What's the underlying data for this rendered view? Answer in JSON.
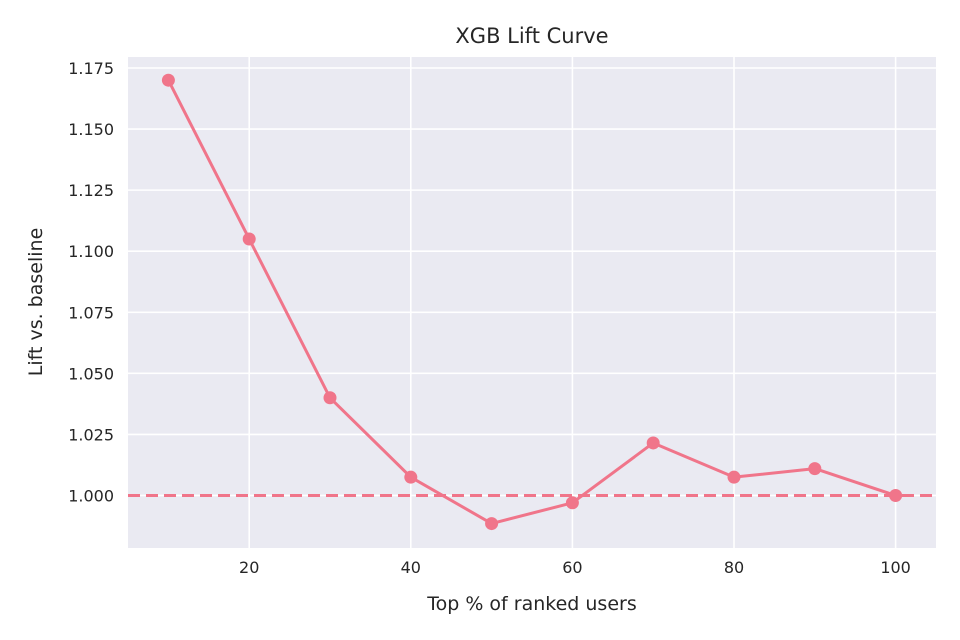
{
  "chart_data": {
    "type": "line",
    "title": "XGB Lift Curve",
    "xlabel": "Top % of ranked users",
    "ylabel": "Lift vs. baseline",
    "x": [
      10,
      20,
      30,
      40,
      50,
      60,
      70,
      80,
      90,
      100
    ],
    "series": [
      {
        "values": [
          1.17,
          1.105,
          1.04,
          1.0075,
          0.9885,
          0.997,
          1.0215,
          1.0075,
          1.011,
          1.0
        ]
      }
    ],
    "reference_line": {
      "y": 1.0,
      "style": "dashed"
    },
    "xlim": [
      5,
      105
    ],
    "ylim": [
      0.9785,
      1.1795
    ],
    "xticks": [
      20,
      40,
      60,
      80,
      100
    ],
    "yticks": [
      1.0,
      1.025,
      1.05,
      1.075,
      1.1,
      1.125,
      1.15,
      1.175
    ],
    "ytick_labels": [
      "1.000",
      "1.025",
      "1.050",
      "1.075",
      "1.100",
      "1.125",
      "1.150",
      "1.175"
    ],
    "grid": true,
    "colors": {
      "background": "#eaeaf2",
      "grid": "#ffffff",
      "series": "#f0758a",
      "text": "#262626"
    }
  }
}
